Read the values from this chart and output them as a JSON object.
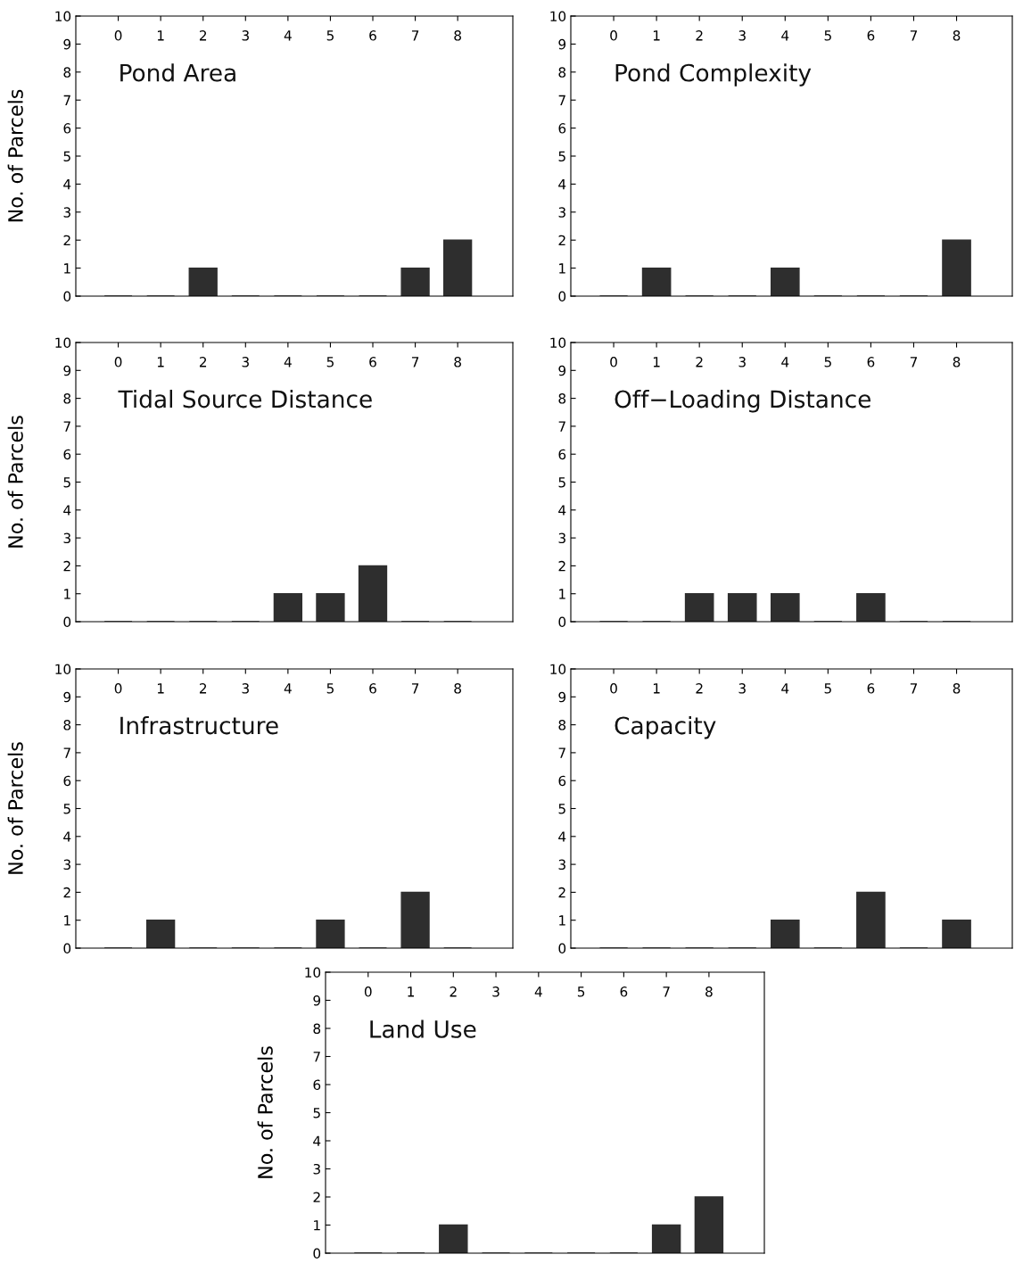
{
  "chart_data": [
    {
      "type": "bar",
      "title": "Pond Area",
      "ylabel": "No. of Parcels",
      "categories": [
        "0",
        "1",
        "2",
        "3",
        "4",
        "5",
        "6",
        "7",
        "8"
      ],
      "values": [
        0,
        0,
        1,
        0,
        0,
        0,
        0,
        1,
        2
      ],
      "color": "#2e2e2e",
      "ylim": [
        0,
        10
      ],
      "yticks": [
        0,
        1,
        2,
        3,
        4,
        5,
        6,
        7,
        8,
        9,
        10
      ]
    },
    {
      "type": "bar",
      "title": "Pond Complexity",
      "categories": [
        "0",
        "1",
        "2",
        "3",
        "4",
        "5",
        "6",
        "7",
        "8"
      ],
      "values": [
        0,
        1,
        0,
        0,
        1,
        0,
        0,
        0,
        2
      ],
      "color": "#2e2e2e",
      "ylim": [
        0,
        10
      ],
      "yticks": [
        0,
        1,
        2,
        3,
        4,
        5,
        6,
        7,
        8,
        9,
        10
      ]
    },
    {
      "type": "bar",
      "title": "Tidal Source Distance",
      "ylabel": "No. of Parcels",
      "categories": [
        "0",
        "1",
        "2",
        "3",
        "4",
        "5",
        "6",
        "7",
        "8"
      ],
      "values": [
        0,
        0,
        0,
        0,
        1,
        1,
        2,
        0,
        0
      ],
      "color": "#2e2e2e",
      "ylim": [
        0,
        10
      ],
      "yticks": [
        0,
        1,
        2,
        3,
        4,
        5,
        6,
        7,
        8,
        9,
        10
      ]
    },
    {
      "type": "bar",
      "title": "Off−Loading Distance",
      "categories": [
        "0",
        "1",
        "2",
        "3",
        "4",
        "5",
        "6",
        "7",
        "8"
      ],
      "values": [
        0,
        0,
        1,
        1,
        1,
        0,
        1,
        0,
        0
      ],
      "color": "#2e2e2e",
      "ylim": [
        0,
        10
      ],
      "yticks": [
        0,
        1,
        2,
        3,
        4,
        5,
        6,
        7,
        8,
        9,
        10
      ]
    },
    {
      "type": "bar",
      "title": "Infrastructure",
      "ylabel": "No. of Parcels",
      "categories": [
        "0",
        "1",
        "2",
        "3",
        "4",
        "5",
        "6",
        "7",
        "8"
      ],
      "values": [
        0,
        1,
        0,
        0,
        0,
        1,
        0,
        2,
        0
      ],
      "color": "#2e2e2e",
      "ylim": [
        0,
        10
      ],
      "yticks": [
        0,
        1,
        2,
        3,
        4,
        5,
        6,
        7,
        8,
        9,
        10
      ]
    },
    {
      "type": "bar",
      "title": "Capacity",
      "categories": [
        "0",
        "1",
        "2",
        "3",
        "4",
        "5",
        "6",
        "7",
        "8"
      ],
      "values": [
        0,
        0,
        0,
        0,
        1,
        0,
        2,
        0,
        1
      ],
      "color": "#2e2e2e",
      "ylim": [
        0,
        10
      ],
      "yticks": [
        0,
        1,
        2,
        3,
        4,
        5,
        6,
        7,
        8,
        9,
        10
      ]
    },
    {
      "type": "bar",
      "title": "Land Use",
      "ylabel": "No. of Parcels",
      "categories": [
        "0",
        "1",
        "2",
        "3",
        "4",
        "5",
        "6",
        "7",
        "8"
      ],
      "values": [
        0,
        0,
        1,
        0,
        0,
        0,
        0,
        1,
        2
      ],
      "color": "#2e2e2e",
      "ylim": [
        0,
        10
      ],
      "yticks": [
        0,
        1,
        2,
        3,
        4,
        5,
        6,
        7,
        8,
        9,
        10
      ]
    }
  ]
}
